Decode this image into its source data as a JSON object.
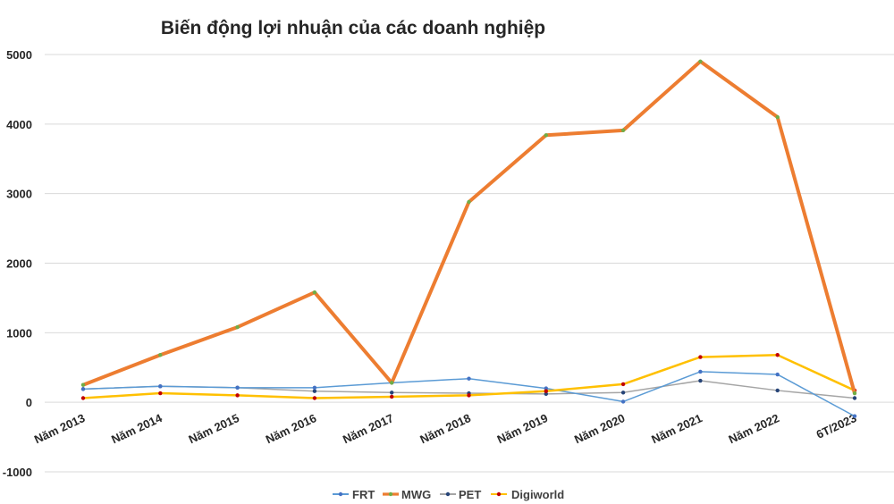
{
  "chart_data": {
    "type": "line",
    "title": "Biến động lợi nhuận của các doanh nghiệp",
    "xlabel": "",
    "ylabel": "",
    "categories": [
      "Năm 2013",
      "Năm 2014",
      "Năm 2015",
      "Năm 2016",
      "Năm 2017",
      "Năm 2018",
      "Năm 2019",
      "Năm 2020",
      "Năm 2021",
      "Năm 2022",
      "6T/2023"
    ],
    "ylim": [
      -1000,
      5000
    ],
    "yticks": [
      -1000,
      0,
      1000,
      2000,
      3000,
      4000,
      5000
    ],
    "grid": true,
    "legend_position": "bottom",
    "series": [
      {
        "name": "FRT",
        "color": "#5b9bd5",
        "marker_color": "#4472c4",
        "width": 1.5,
        "values": [
          190,
          230,
          210,
          210,
          280,
          340,
          200,
          10,
          440,
          400,
          -200
        ]
      },
      {
        "name": "MWG",
        "color": "#ed7d31",
        "marker_color": "#70ad47",
        "width": 4,
        "values": [
          250,
          680,
          1080,
          1580,
          280,
          2880,
          3840,
          3910,
          4900,
          4100,
          130
        ]
      },
      {
        "name": "PET",
        "color": "#a5a5a5",
        "marker_color": "#264478",
        "width": 1.5,
        "values": [
          190,
          230,
          210,
          160,
          140,
          130,
          120,
          140,
          310,
          170,
          60
        ]
      },
      {
        "name": "Digiworld",
        "color": "#ffc000",
        "marker_color": "#c00000",
        "width": 2.5,
        "values": [
          60,
          130,
          100,
          60,
          80,
          100,
          160,
          260,
          650,
          680,
          170
        ]
      }
    ]
  }
}
